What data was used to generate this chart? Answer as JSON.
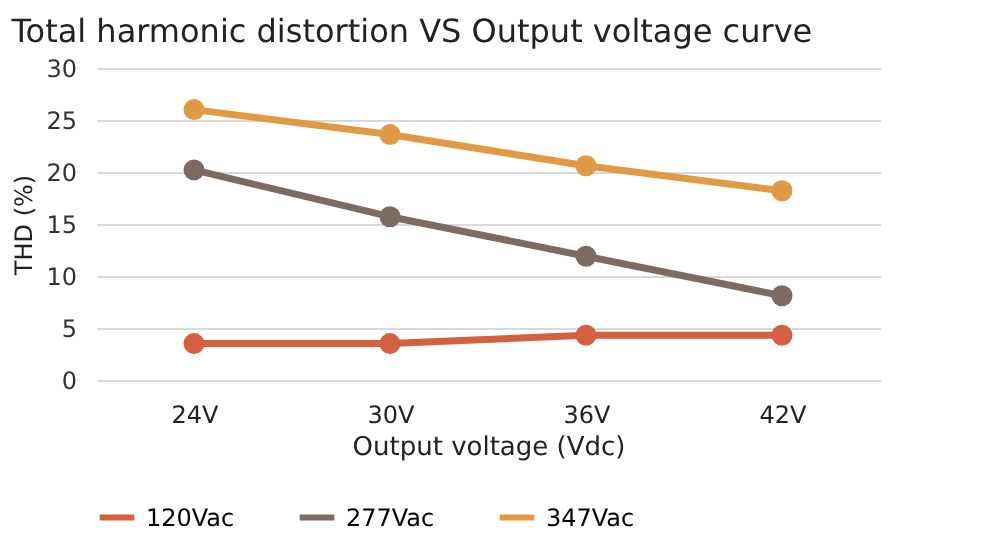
{
  "chart_data": {
    "type": "line",
    "title": "Total harmonic distortion VS Output voltage curve",
    "xlabel": "Output voltage (Vdc)",
    "ylabel": "THD (%)",
    "categories": [
      "24V",
      "30V",
      "36V",
      "42V"
    ],
    "series": [
      {
        "name": "120Vac",
        "color": "#d4603f",
        "values": [
          3.5,
          3.5,
          4.3,
          4.3
        ]
      },
      {
        "name": "277Vac",
        "color": "#7b6b62",
        "values": [
          20.2,
          15.7,
          11.9,
          8.1
        ]
      },
      {
        "name": "347Vac",
        "color": "#e09a44",
        "values": [
          26,
          23.6,
          20.6,
          18.2
        ]
      }
    ],
    "ylim": [
      0,
      30
    ],
    "yticks": [
      0,
      5,
      10,
      15,
      20,
      25,
      30
    ],
    "grid": "y",
    "legend": "bottom",
    "marker": "circle",
    "line_style": "solid"
  }
}
